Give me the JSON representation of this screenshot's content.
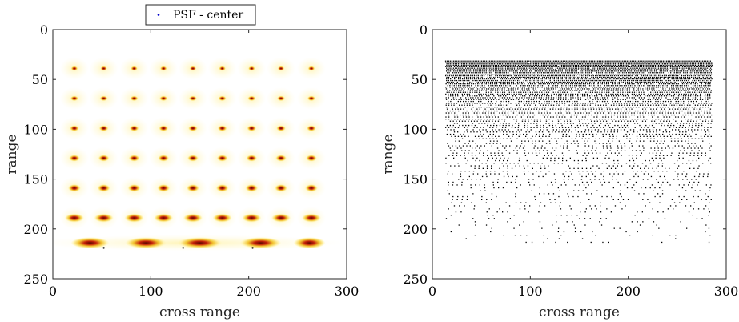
{
  "chart_data": [
    {
      "type": "heatmap",
      "title": "",
      "xlabel": "cross range",
      "ylabel": "range",
      "xlim": [
        0,
        300
      ],
      "ylim": [
        250,
        0
      ],
      "y_reversed": true,
      "xticks": [
        0,
        100,
        200,
        300
      ],
      "yticks": [
        0,
        50,
        100,
        150,
        200,
        250
      ],
      "xtick_labels": [
        "0",
        "100",
        "200",
        "300"
      ],
      "ytick_labels": [
        "0",
        "50",
        "100",
        "150",
        "200",
        "250"
      ],
      "colormap": "hot (white background, yellow to red to black peaks)",
      "grid": false,
      "legend": {
        "placement": "top-center",
        "entries": [
          "PSF - center"
        ],
        "marker_color": "#0000cc"
      },
      "spot_columns_x": [
        22,
        52,
        83,
        113,
        143,
        173,
        203,
        233,
        264
      ],
      "spot_rows_y": [
        39,
        69,
        99,
        129,
        159,
        189
      ],
      "bottom_band_y": 214,
      "psf_center_points": [
        {
          "x": 52,
          "y": 219
        },
        {
          "x": 133,
          "y": 219
        },
        {
          "x": 204,
          "y": 219
        }
      ]
    },
    {
      "type": "scatter",
      "title": "",
      "xlabel": "cross range",
      "ylabel": "range",
      "xlim": [
        0,
        300
      ],
      "ylim": [
        250,
        0
      ],
      "y_reversed": true,
      "xticks": [
        0,
        100,
        200,
        300
      ],
      "yticks": [
        0,
        50,
        100,
        150,
        200,
        250
      ],
      "xtick_labels": [
        "0",
        "100",
        "200",
        "300"
      ],
      "ytick_labels": [
        "0",
        "50",
        "100",
        "150",
        "200",
        "250"
      ],
      "grid": false,
      "point_color": "#000000",
      "x_extent": [
        13,
        285
      ],
      "y_extent": [
        31,
        216
      ],
      "point_cloud": "dense sampling grid; rows nearly solid near y=31 and growing sparser with increasing range down to ~216"
    }
  ],
  "colors": {
    "spot_outer": "#fff7c2",
    "spot_mid": "#f2c431",
    "spot_core": "#c41f0a",
    "axes": "#262626"
  }
}
